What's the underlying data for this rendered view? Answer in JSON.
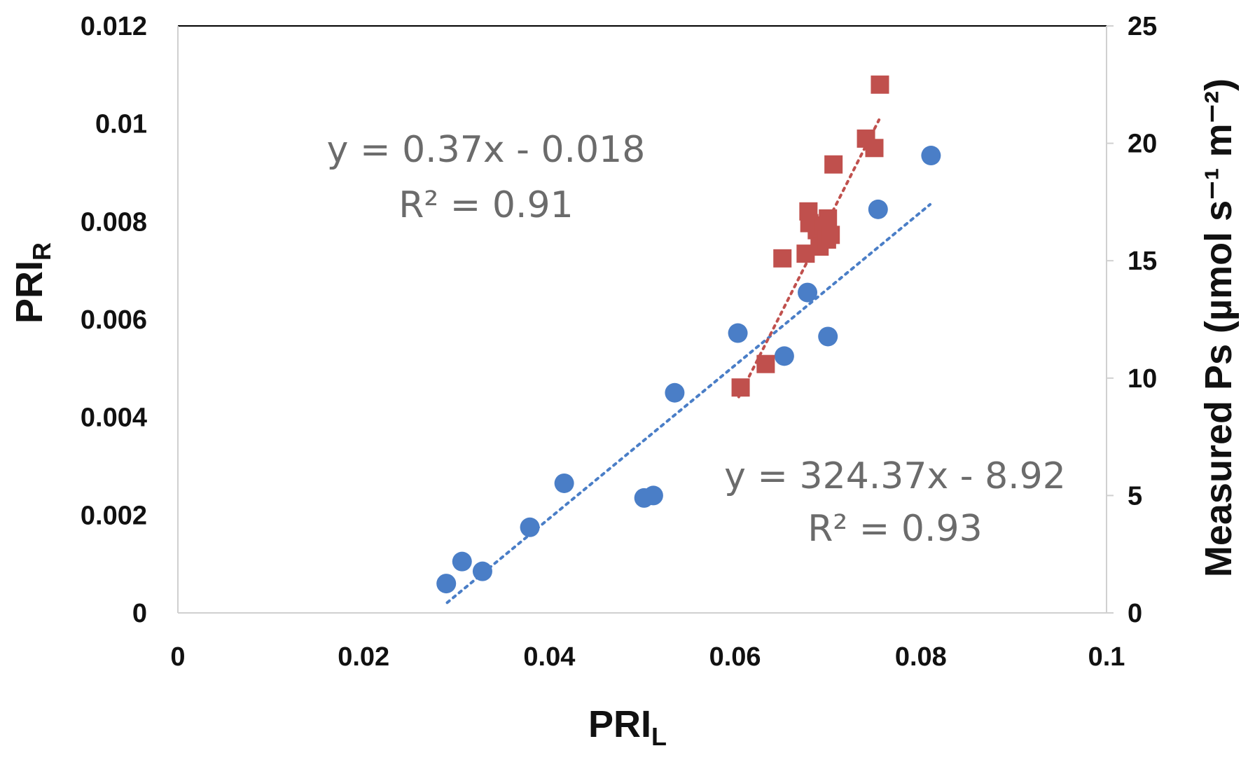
{
  "chart_data": {
    "type": "scatter",
    "xlabel_main": "PRI",
    "xlabel_sub": "L",
    "ylabel_left_main": "PRI",
    "ylabel_left_sub": "R",
    "ylabel_right": "Measured Ps (µmol s⁻¹ m⁻²)",
    "xlim": [
      0,
      0.1
    ],
    "ylim_left": [
      0,
      0.012
    ],
    "ylim_right": [
      0,
      25
    ],
    "x_ticks": [
      "0",
      "0.02",
      "0.04",
      "0.06",
      "0.08",
      "0.1"
    ],
    "x_tick_values": [
      0,
      0.02,
      0.04,
      0.06,
      0.08,
      0.1
    ],
    "y_left_ticks": [
      "0",
      "0.002",
      "0.004",
      "0.006",
      "0.008",
      "0.01",
      "0.012"
    ],
    "y_left_tick_values": [
      0,
      0.002,
      0.004,
      0.006,
      0.008,
      0.01,
      0.012
    ],
    "y_right_ticks": [
      "0",
      "5",
      "10",
      "15",
      "20",
      "25"
    ],
    "y_right_tick_values": [
      0,
      5,
      10,
      15,
      20,
      25
    ],
    "series": [
      {
        "name": "PRI_R",
        "axis": "left",
        "marker": "circle",
        "color": "#4a7ec7",
        "points": [
          [
            0.0289,
            0.0006
          ],
          [
            0.0306,
            0.00105
          ],
          [
            0.0328,
            0.00085
          ],
          [
            0.0379,
            0.00175
          ],
          [
            0.0416,
            0.00265
          ],
          [
            0.0502,
            0.00235
          ],
          [
            0.0512,
            0.0024
          ],
          [
            0.0535,
            0.0045
          ],
          [
            0.0603,
            0.00572
          ],
          [
            0.0653,
            0.00525
          ],
          [
            0.0678,
            0.00655
          ],
          [
            0.07,
            0.00565
          ],
          [
            0.0754,
            0.00825
          ],
          [
            0.0811,
            0.00935
          ]
        ],
        "trendline": {
          "x": [
            0.029,
            0.081
          ],
          "y": [
            0.00021,
            0.00835
          ]
        },
        "equation": "y = 324.37x - 8.92",
        "r2": "R² = 0.93"
      },
      {
        "name": "Measured Ps",
        "axis": "right",
        "marker": "square",
        "color": "#c0504d",
        "points": [
          [
            0.0606,
            9.6
          ],
          [
            0.0633,
            10.6
          ],
          [
            0.0651,
            15.1
          ],
          [
            0.0676,
            15.3
          ],
          [
            0.0679,
            17.1
          ],
          [
            0.068,
            16.6
          ],
          [
            0.0688,
            16.3
          ],
          [
            0.0691,
            15.6
          ],
          [
            0.0695,
            16.5
          ],
          [
            0.0699,
            15.9
          ],
          [
            0.07,
            16.8
          ],
          [
            0.0703,
            16.1
          ],
          [
            0.0706,
            19.1
          ],
          [
            0.0741,
            20.2
          ],
          [
            0.075,
            19.8
          ],
          [
            0.0756,
            22.5
          ]
        ],
        "trendline": {
          "x": [
            0.0604,
            0.0755
          ],
          "y": [
            9.2,
            21.0
          ]
        },
        "equation": "y = 0.37x - 0.018",
        "r2": "R² = 0.91"
      }
    ]
  }
}
